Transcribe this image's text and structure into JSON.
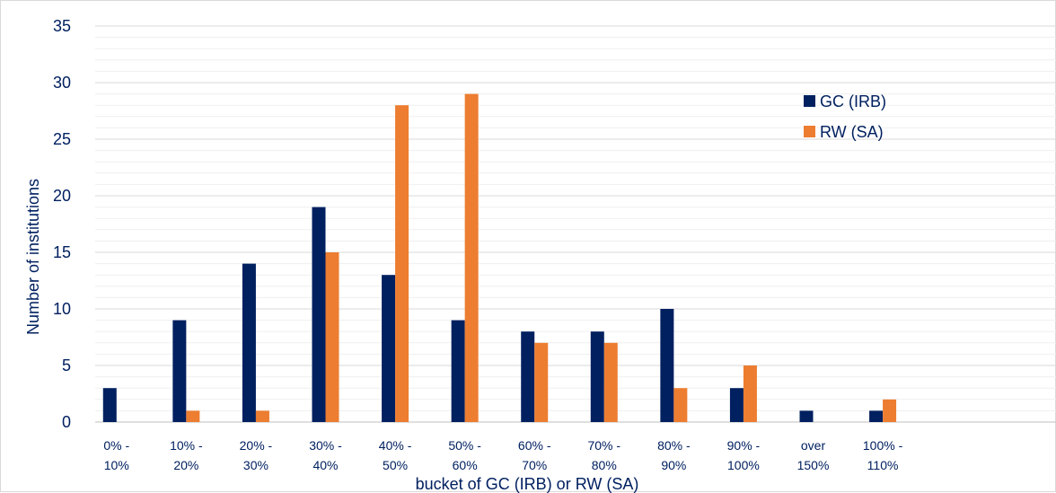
{
  "chart_data": {
    "type": "bar",
    "title": "",
    "xlabel": "bucket of GC (IRB) or RW (SA)",
    "ylabel": "Number of institutions",
    "ylim": [
      0,
      35
    ],
    "yticks": [
      0,
      5,
      10,
      15,
      20,
      25,
      30,
      35
    ],
    "grid": true,
    "legend_position": "right",
    "categories": [
      [
        "0% -",
        "10%"
      ],
      [
        "10% -",
        "20%"
      ],
      [
        "20% -",
        "30%"
      ],
      [
        "30% -",
        "40%"
      ],
      [
        "40% -",
        "50%"
      ],
      [
        "50% -",
        "60%"
      ],
      [
        "60% -",
        "70%"
      ],
      [
        "70% -",
        "80%"
      ],
      [
        "80% -",
        "90%"
      ],
      [
        "90% -",
        "100%"
      ],
      [
        "over",
        "150%"
      ],
      [
        "100% -",
        "110%"
      ],
      [
        "",
        ""
      ],
      [
        "",
        ""
      ]
    ],
    "series": [
      {
        "name": "GC (IRB)",
        "color": "#002060",
        "values": [
          3,
          9,
          14,
          19,
          13,
          9,
          8,
          8,
          10,
          3,
          1,
          1,
          null,
          null
        ]
      },
      {
        "name": "RW (SA)",
        "color": "#ED7D31",
        "values": [
          0,
          1,
          1,
          15,
          28,
          29,
          7,
          7,
          3,
          5,
          0,
          2,
          null,
          null
        ]
      }
    ]
  }
}
